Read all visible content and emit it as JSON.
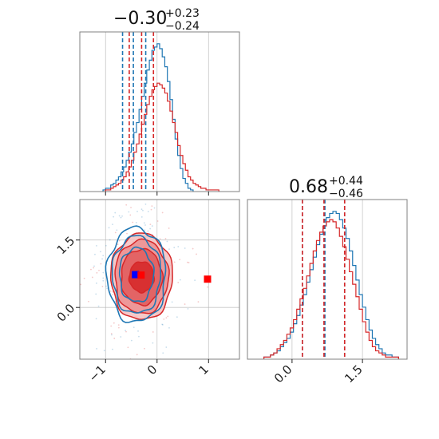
{
  "chart_data": [
    {
      "type": "histogram",
      "panel": "top-left marginal",
      "title_main": "−0.30",
      "title_sup": "+0.23",
      "title_sub": "−0.24",
      "xlim": [
        -1.5,
        1.6
      ],
      "bin_width": 0.05,
      "x_ticks_on_axis": [
        -1,
        0,
        1
      ],
      "series": [
        {
          "color": "#1f77b4",
          "bin_start": -1.05,
          "counts": [
            1,
            2,
            2,
            4,
            5,
            7,
            9,
            12,
            15,
            19,
            24,
            29,
            36,
            42,
            50,
            58,
            66,
            74,
            80,
            86,
            88,
            90,
            87,
            82,
            76,
            67,
            56,
            44,
            32,
            22,
            14,
            8,
            5,
            2,
            1
          ],
          "quantiles": [
            -0.67,
            -0.46,
            -0.22
          ]
        },
        {
          "color": "#d62728",
          "bin_start": -1.0,
          "counts": [
            1,
            1,
            2,
            3,
            4,
            5,
            7,
            9,
            12,
            15,
            19,
            24,
            29,
            35,
            41,
            47,
            53,
            58,
            62,
            64,
            66,
            65,
            63,
            60,
            55,
            49,
            42,
            36,
            28,
            22,
            17,
            13,
            9,
            7,
            5,
            4,
            3,
            2,
            2,
            1,
            1,
            1,
            1,
            1
          ],
          "quantiles": [
            -0.54,
            -0.3,
            -0.07
          ]
        }
      ]
    },
    {
      "type": "contour",
      "panel": "bottom-left joint",
      "xlim": [
        -1.5,
        1.6
      ],
      "ylim": [
        -1.15,
        2.4
      ],
      "x_ticks": [
        -1,
        0,
        1
      ],
      "x_tick_labels": [
        "−1",
        "0",
        "1"
      ],
      "y_ticks": [
        0.0,
        1.5
      ],
      "y_tick_labels": [
        "0.0",
        "1.5"
      ],
      "contours": [
        {
          "color": "#1f77b4",
          "cx": -0.4,
          "cy": 0.72,
          "rx": [
            0.17,
            0.33,
            0.47,
            0.57
          ],
          "ry": [
            0.3,
            0.6,
            0.86,
            1.05
          ]
        },
        {
          "color": "#d62728",
          "cx": -0.3,
          "cy": 0.68,
          "rx": [
            0.24,
            0.4,
            0.52,
            0.6
          ],
          "ry": [
            0.34,
            0.62,
            0.82,
            0.96
          ]
        }
      ],
      "markers": [
        {
          "color": "#0000ff",
          "x": -0.42,
          "y": 0.73
        },
        {
          "color": "#ff0000",
          "x": -0.31,
          "y": 0.72
        },
        {
          "color": "#ff0000",
          "x": 0.98,
          "y": 0.63
        }
      ]
    },
    {
      "type": "histogram",
      "panel": "bottom-right marginal",
      "title_main": "0.68",
      "title_sup": "+0.44",
      "title_sub": "−0.46",
      "xlim": [
        -0.95,
        2.45
      ],
      "bin_width": 0.07,
      "x_ticks": [
        0.0,
        1.5
      ],
      "x_tick_labels": [
        "0.0",
        "1.5"
      ],
      "series": [
        {
          "color": "#1f77b4",
          "bin_start": -0.6,
          "counts": [
            1,
            1,
            2,
            3,
            4,
            6,
            8,
            10,
            13,
            17,
            21,
            26,
            31,
            37,
            43,
            49,
            55,
            60,
            64,
            68,
            70,
            71,
            70,
            67,
            63,
            58,
            52,
            45,
            38,
            31,
            25,
            19,
            14,
            10,
            7,
            5,
            3,
            2,
            2,
            1,
            1
          ],
          "quantiles": [
            0.22,
            0.7,
            1.12
          ]
        },
        {
          "color": "#d62728",
          "bin_start": -0.6,
          "counts": [
            1,
            1,
            2,
            3,
            5,
            7,
            9,
            12,
            15,
            19,
            24,
            29,
            34,
            40,
            46,
            52,
            57,
            61,
            64,
            66,
            67,
            66,
            63,
            59,
            54,
            48,
            42,
            36,
            30,
            24,
            18,
            13,
            9,
            6,
            4,
            3,
            2,
            1,
            1,
            1,
            1
          ],
          "quantiles": [
            0.22,
            0.68,
            1.12
          ]
        }
      ]
    }
  ]
}
